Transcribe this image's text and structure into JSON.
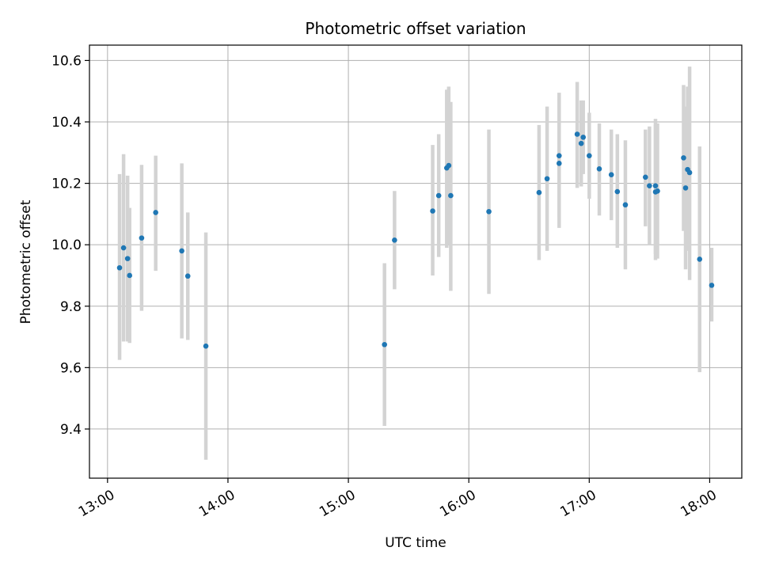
{
  "chart_data": {
    "type": "scatter",
    "title": "Photometric offset variation",
    "xlabel": "UTC time",
    "ylabel": "Photometric offset",
    "x_tick_labels": [
      "13:00",
      "14:00",
      "15:00",
      "16:00",
      "17:00",
      "18:00"
    ],
    "x_tick_values": [
      "13:00",
      "14:00",
      "15:00",
      "16:00",
      "17:00",
      "18:00"
    ],
    "xlim": [
      "12:51",
      "18:16"
    ],
    "ylim": [
      9.24,
      10.65
    ],
    "y_ticks": [
      9.4,
      9.6,
      9.8,
      10.0,
      10.2,
      10.4,
      10.6
    ],
    "y_tick_labels": [
      "9.4",
      "9.6",
      "9.8",
      "10.0",
      "10.2",
      "10.4",
      "10.6"
    ],
    "grid": true,
    "colors": {
      "points": "#1f77b4",
      "errorbars": "#d3d3d3",
      "grid": "#b0b0b0"
    },
    "series": [
      {
        "points": [
          {
            "x": "13:06",
            "y": 9.925,
            "yerr_low": 9.625,
            "yerr_high": 10.23
          },
          {
            "x": "13:08",
            "y": 9.99,
            "yerr_low": 9.685,
            "yerr_high": 10.295
          },
          {
            "x": "13:10",
            "y": 9.955,
            "yerr_low": 9.685,
            "yerr_high": 10.225
          },
          {
            "x": "13:11",
            "y": 9.9,
            "yerr_low": 9.68,
            "yerr_high": 10.12
          },
          {
            "x": "13:17",
            "y": 10.022,
            "yerr_low": 9.785,
            "yerr_high": 10.26
          },
          {
            "x": "13:24",
            "y": 10.105,
            "yerr_low": 9.915,
            "yerr_high": 10.29
          },
          {
            "x": "13:37",
            "y": 9.98,
            "yerr_low": 9.695,
            "yerr_high": 10.265
          },
          {
            "x": "13:40",
            "y": 9.898,
            "yerr_low": 9.69,
            "yerr_high": 10.105
          },
          {
            "x": "13:49",
            "y": 9.67,
            "yerr_low": 9.3,
            "yerr_high": 10.04
          },
          {
            "x": "15:18",
            "y": 9.675,
            "yerr_low": 9.41,
            "yerr_high": 9.94
          },
          {
            "x": "15:23",
            "y": 10.015,
            "yerr_low": 9.855,
            "yerr_high": 10.175
          },
          {
            "x": "15:42",
            "y": 10.11,
            "yerr_low": 9.9,
            "yerr_high": 10.325
          },
          {
            "x": "15:45",
            "y": 10.16,
            "yerr_low": 9.96,
            "yerr_high": 10.36
          },
          {
            "x": "15:49",
            "y": 10.25,
            "yerr_low": 9.99,
            "yerr_high": 10.505
          },
          {
            "x": "15:50",
            "y": 10.258,
            "yerr_low": 10.0,
            "yerr_high": 10.515
          },
          {
            "x": "15:51",
            "y": 10.16,
            "yerr_low": 9.85,
            "yerr_high": 10.465
          },
          {
            "x": "16:10",
            "y": 10.108,
            "yerr_low": 9.84,
            "yerr_high": 10.375
          },
          {
            "x": "16:35",
            "y": 10.17,
            "yerr_low": 9.95,
            "yerr_high": 10.39
          },
          {
            "x": "16:39",
            "y": 10.215,
            "yerr_low": 9.98,
            "yerr_high": 10.45
          },
          {
            "x": "16:45",
            "y": 10.29,
            "yerr_low": 10.09,
            "yerr_high": 10.495
          },
          {
            "x": "16:45",
            "y": 10.265,
            "yerr_low": 10.055,
            "yerr_high": 10.475
          },
          {
            "x": "16:54",
            "y": 10.36,
            "yerr_low": 10.185,
            "yerr_high": 10.53
          },
          {
            "x": "16:56",
            "y": 10.33,
            "yerr_low": 10.19,
            "yerr_high": 10.47
          },
          {
            "x": "16:57",
            "y": 10.35,
            "yerr_low": 10.23,
            "yerr_high": 10.47
          },
          {
            "x": "17:00",
            "y": 10.29,
            "yerr_low": 10.15,
            "yerr_high": 10.43
          },
          {
            "x": "17:05",
            "y": 10.247,
            "yerr_low": 10.095,
            "yerr_high": 10.395
          },
          {
            "x": "17:11",
            "y": 10.228,
            "yerr_low": 10.08,
            "yerr_high": 10.375
          },
          {
            "x": "17:14",
            "y": 10.173,
            "yerr_low": 9.99,
            "yerr_high": 10.36
          },
          {
            "x": "17:18",
            "y": 10.13,
            "yerr_low": 9.92,
            "yerr_high": 10.34
          },
          {
            "x": "17:28",
            "y": 10.22,
            "yerr_low": 10.06,
            "yerr_high": 10.375
          },
          {
            "x": "17:30",
            "y": 10.192,
            "yerr_low": 10.0,
            "yerr_high": 10.385
          },
          {
            "x": "17:33",
            "y": 10.172,
            "yerr_low": 9.95,
            "yerr_high": 10.39
          },
          {
            "x": "17:33",
            "y": 10.192,
            "yerr_low": 9.97,
            "yerr_high": 10.41
          },
          {
            "x": "17:34",
            "y": 10.175,
            "yerr_low": 9.955,
            "yerr_high": 10.395
          },
          {
            "x": "17:47",
            "y": 10.283,
            "yerr_low": 10.045,
            "yerr_high": 10.52
          },
          {
            "x": "17:48",
            "y": 10.185,
            "yerr_low": 9.92,
            "yerr_high": 10.45
          },
          {
            "x": "17:49",
            "y": 10.245,
            "yerr_low": 9.98,
            "yerr_high": 10.515
          },
          {
            "x": "17:50",
            "y": 10.235,
            "yerr_low": 9.885,
            "yerr_high": 10.58
          },
          {
            "x": "17:55",
            "y": 9.953,
            "yerr_low": 9.585,
            "yerr_high": 10.32
          },
          {
            "x": "18:01",
            "y": 9.868,
            "yerr_low": 9.75,
            "yerr_high": 9.99
          }
        ]
      }
    ]
  }
}
